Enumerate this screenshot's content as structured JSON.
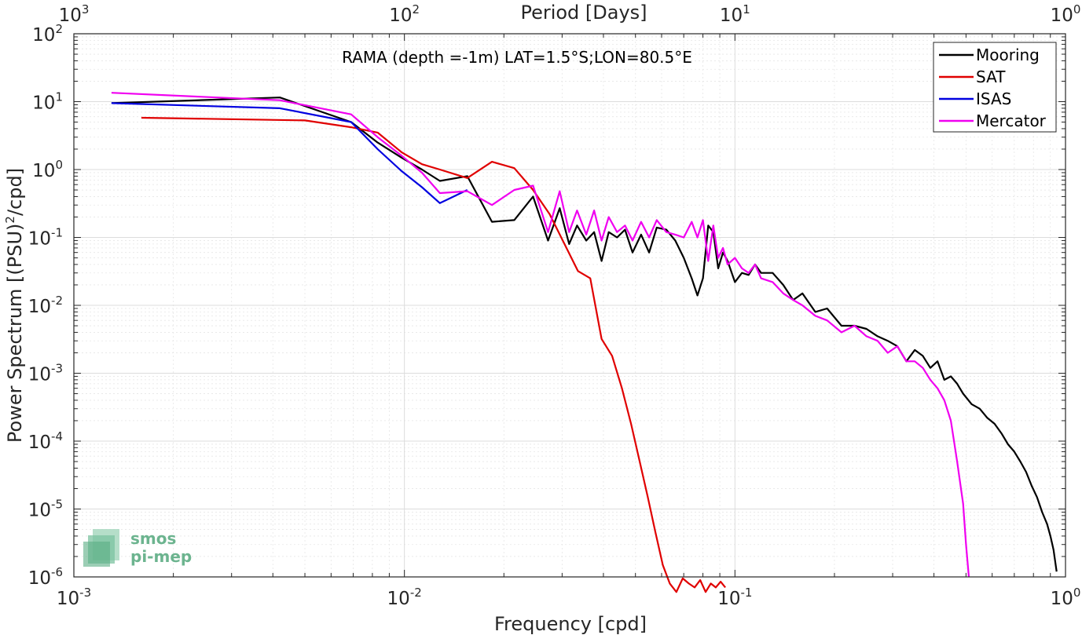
{
  "chart_data": {
    "type": "line",
    "title": "RAMA (depth =-1m) LAT=1.5°S;LON=80.5°E",
    "xlabel": "Frequency [cpd]",
    "ylabel": "Power Spectrum [(PSU)^2/cpd]",
    "ylabel_parts": [
      "Power Spectrum [(PSU)",
      "2",
      "/cpd]"
    ],
    "top_axis_label": "Period [Days]",
    "x_scale": "log",
    "y_scale": "log",
    "xlim": [
      0.001,
      1
    ],
    "ylim": [
      1e-06,
      100
    ],
    "grid": true,
    "legend_position": "top-right",
    "x_ticks": [
      {
        "value": 0.001,
        "base": "10",
        "exp": "-3"
      },
      {
        "value": 0.01,
        "base": "10",
        "exp": "-2"
      },
      {
        "value": 0.1,
        "base": "10",
        "exp": "-1"
      },
      {
        "value": 1,
        "base": "10",
        "exp": "0"
      }
    ],
    "y_ticks": [
      {
        "value": 100,
        "base": "10",
        "exp": "2"
      },
      {
        "value": 10,
        "base": "10",
        "exp": "1"
      },
      {
        "value": 1,
        "base": "10",
        "exp": "0"
      },
      {
        "value": 0.1,
        "base": "10",
        "exp": "-1"
      },
      {
        "value": 0.01,
        "base": "10",
        "exp": "-2"
      },
      {
        "value": 0.001,
        "base": "10",
        "exp": "-3"
      },
      {
        "value": 0.0001,
        "base": "10",
        "exp": "-4"
      },
      {
        "value": 1e-05,
        "base": "10",
        "exp": "-5"
      },
      {
        "value": 1e-06,
        "base": "10",
        "exp": "-6"
      }
    ],
    "top_ticks": [
      {
        "value": 0.001,
        "base": "10",
        "exp": "3"
      },
      {
        "value": 0.01,
        "base": "10",
        "exp": "2"
      },
      {
        "value": 0.1,
        "base": "10",
        "exp": "1"
      },
      {
        "value": 1,
        "base": "10",
        "exp": "0"
      }
    ],
    "series": [
      {
        "name": "Mooring",
        "color": "#000000",
        "x": [
          0.0013,
          0.0042,
          0.0069,
          0.0083,
          0.0098,
          0.0113,
          0.0128,
          0.0155,
          0.0184,
          0.0215,
          0.0245,
          0.0272,
          0.0295,
          0.0315,
          0.0333,
          0.0355,
          0.0375,
          0.0395,
          0.0415,
          0.044,
          0.0465,
          0.049,
          0.052,
          0.055,
          0.058,
          0.062,
          0.066,
          0.07,
          0.074,
          0.077,
          0.08,
          0.083,
          0.086,
          0.089,
          0.092,
          0.095,
          0.1,
          0.105,
          0.11,
          0.115,
          0.12,
          0.13,
          0.14,
          0.15,
          0.16,
          0.175,
          0.19,
          0.21,
          0.23,
          0.25,
          0.27,
          0.29,
          0.31,
          0.33,
          0.35,
          0.37,
          0.39,
          0.41,
          0.43,
          0.45,
          0.47,
          0.49,
          0.52,
          0.55,
          0.58,
          0.61,
          0.64,
          0.67,
          0.7,
          0.73,
          0.76,
          0.79,
          0.82,
          0.85,
          0.88,
          0.9,
          0.92,
          0.94
        ],
        "values": [
          9.5,
          11.5,
          5.0,
          2.5,
          1.5,
          1.0,
          0.68,
          0.8,
          0.17,
          0.18,
          0.4,
          0.09,
          0.27,
          0.08,
          0.15,
          0.09,
          0.12,
          0.045,
          0.12,
          0.1,
          0.13,
          0.06,
          0.11,
          0.06,
          0.14,
          0.13,
          0.09,
          0.05,
          0.025,
          0.014,
          0.025,
          0.15,
          0.12,
          0.035,
          0.06,
          0.045,
          0.022,
          0.03,
          0.028,
          0.04,
          0.03,
          0.03,
          0.02,
          0.012,
          0.015,
          0.008,
          0.009,
          0.005,
          0.005,
          0.0045,
          0.0035,
          0.003,
          0.0025,
          0.0015,
          0.0022,
          0.0018,
          0.0012,
          0.0015,
          0.0008,
          0.0009,
          0.0007,
          0.0005,
          0.00035,
          0.0003,
          0.00022,
          0.00018,
          0.00013,
          9e-05,
          7e-05,
          5e-05,
          3.5e-05,
          2.2e-05,
          1.5e-05,
          9e-06,
          6e-06,
          4e-06,
          2.5e-06,
          1.2e-06
        ]
      },
      {
        "name": "SAT",
        "color": "#e00000",
        "x": [
          0.0016,
          0.005,
          0.0069,
          0.0083,
          0.0098,
          0.0113,
          0.0128,
          0.0155,
          0.0184,
          0.0215,
          0.0245,
          0.0275,
          0.0305,
          0.0335,
          0.0365,
          0.0395,
          0.0425,
          0.0455,
          0.0485,
          0.0515,
          0.0545,
          0.0575,
          0.0605,
          0.0635,
          0.0665,
          0.0695,
          0.0725,
          0.0755,
          0.0785,
          0.0815,
          0.0845,
          0.0875,
          0.0905,
          0.0935
        ],
        "values": [
          5.8,
          5.3,
          4.2,
          3.5,
          1.8,
          1.2,
          1.0,
          0.75,
          1.3,
          1.05,
          0.5,
          0.22,
          0.08,
          0.032,
          0.025,
          0.0032,
          0.0018,
          0.0006,
          0.00018,
          5e-05,
          1.5e-05,
          4.5e-06,
          1.5e-06,
          8e-07,
          6e-07,
          9.5e-07,
          8e-07,
          7e-07,
          9e-07,
          6e-07,
          8e-07,
          7e-07,
          8.5e-07,
          7e-07
        ]
      },
      {
        "name": "ISAS",
        "color": "#0000e0",
        "x": [
          0.0013,
          0.0042,
          0.0069,
          0.0083,
          0.0098,
          0.0113,
          0.0128,
          0.0155
        ],
        "values": [
          9.5,
          8.0,
          5.0,
          2.0,
          0.95,
          0.55,
          0.32,
          0.5
        ]
      },
      {
        "name": "Mercator",
        "color": "#f000f0",
        "x": [
          0.0013,
          0.0042,
          0.0069,
          0.0083,
          0.0098,
          0.0113,
          0.0128,
          0.0155,
          0.0184,
          0.0215,
          0.0245,
          0.0272,
          0.0295,
          0.0315,
          0.0333,
          0.0355,
          0.0375,
          0.0395,
          0.0415,
          0.044,
          0.0465,
          0.049,
          0.052,
          0.055,
          0.058,
          0.062,
          0.066,
          0.07,
          0.074,
          0.077,
          0.08,
          0.083,
          0.086,
          0.089,
          0.092,
          0.095,
          0.1,
          0.105,
          0.11,
          0.115,
          0.12,
          0.13,
          0.14,
          0.15,
          0.16,
          0.175,
          0.19,
          0.21,
          0.23,
          0.25,
          0.27,
          0.29,
          0.31,
          0.33,
          0.35,
          0.37,
          0.39,
          0.41,
          0.43,
          0.45,
          0.47,
          0.49,
          0.5,
          0.51
        ],
        "values": [
          13.5,
          10.5,
          6.5,
          3.0,
          1.6,
          0.9,
          0.45,
          0.48,
          0.3,
          0.5,
          0.58,
          0.12,
          0.48,
          0.12,
          0.25,
          0.11,
          0.25,
          0.09,
          0.2,
          0.12,
          0.15,
          0.09,
          0.17,
          0.1,
          0.18,
          0.12,
          0.11,
          0.1,
          0.17,
          0.1,
          0.18,
          0.045,
          0.15,
          0.05,
          0.07,
          0.04,
          0.05,
          0.035,
          0.03,
          0.04,
          0.025,
          0.022,
          0.015,
          0.012,
          0.01,
          0.007,
          0.006,
          0.004,
          0.005,
          0.0035,
          0.003,
          0.002,
          0.0025,
          0.0015,
          0.0015,
          0.0012,
          0.0008,
          0.0006,
          0.0004,
          0.0002,
          5e-05,
          1.2e-05,
          3e-06,
          1e-06
        ]
      }
    ]
  },
  "logo": {
    "line1": "smos",
    "line2": "pi-mep"
  }
}
